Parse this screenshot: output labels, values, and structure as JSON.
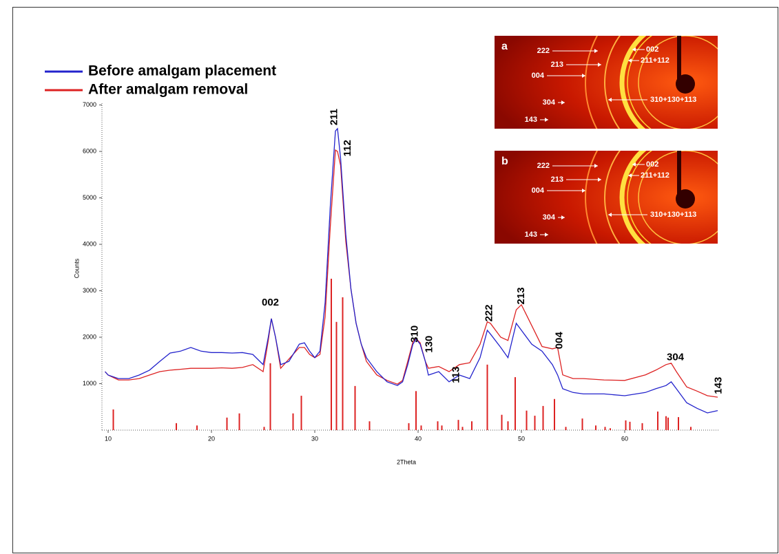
{
  "chart_data": {
    "type": "line",
    "x_label": "2Theta",
    "y_label": "Counts",
    "xlim": [
      9.4,
      69.2
    ],
    "ylim": [
      0,
      7000
    ],
    "xticks": [
      10,
      20,
      30,
      40,
      50,
      60
    ],
    "yticks": [
      1000,
      2000,
      3000,
      4000,
      5000,
      6000,
      7000
    ],
    "x": [
      9.7,
      10,
      11,
      12,
      13,
      14,
      15,
      16,
      17,
      18,
      19,
      20,
      21,
      22,
      23,
      24,
      25,
      25.5,
      25.8,
      26.2,
      26.7,
      27.5,
      28.5,
      29,
      29.5,
      30,
      30.5,
      31,
      31.5,
      32,
      32.2,
      32.5,
      33,
      33.5,
      34,
      34.5,
      35,
      36,
      37,
      38,
      38.5,
      39,
      39.5,
      39.8,
      40.2,
      40.7,
      41,
      42,
      43,
      44,
      45,
      46,
      46.7,
      47,
      48,
      48.7,
      49.5,
      50,
      51,
      52,
      53,
      53.5,
      54,
      55,
      56,
      58,
      60,
      62,
      63,
      64,
      64.5,
      65,
      66,
      67,
      68,
      69
    ],
    "series": [
      {
        "name": "Before amalgam placement",
        "color": "#2222cc",
        "values": [
          1260,
          1185,
          1110,
          1110,
          1185,
          1290,
          1480,
          1660,
          1700,
          1780,
          1700,
          1670,
          1670,
          1660,
          1670,
          1630,
          1410,
          2000,
          2400,
          2000,
          1410,
          1480,
          1850,
          1880,
          1700,
          1560,
          1700,
          2740,
          4810,
          6440,
          6490,
          5850,
          4220,
          3040,
          2300,
          1850,
          1560,
          1260,
          1040,
          960,
          1040,
          1410,
          1850,
          1960,
          1850,
          1480,
          1185,
          1260,
          1040,
          1185,
          1110,
          1560,
          2150,
          2070,
          1780,
          1560,
          2300,
          2150,
          1850,
          1700,
          1410,
          1190,
          890,
          810,
          780,
          780,
          740,
          810,
          890,
          960,
          1040,
          890,
          590,
          470,
          370,
          420
        ]
      },
      {
        "name": "After amalgam removal",
        "color": "#dd2222",
        "values": [
          1260,
          1185,
          1080,
          1080,
          1110,
          1185,
          1260,
          1290,
          1310,
          1330,
          1330,
          1330,
          1340,
          1330,
          1350,
          1410,
          1260,
          1930,
          2400,
          2000,
          1330,
          1530,
          1780,
          1780,
          1630,
          1560,
          1630,
          2440,
          4370,
          6030,
          6000,
          5700,
          4070,
          3040,
          2300,
          1850,
          1480,
          1190,
          1070,
          990,
          1070,
          1480,
          1900,
          1970,
          1880,
          1480,
          1330,
          1370,
          1260,
          1410,
          1450,
          1850,
          2330,
          2300,
          2000,
          1930,
          2590,
          2700,
          2250,
          1800,
          1750,
          1780,
          1190,
          1110,
          1110,
          1080,
          1070,
          1190,
          1290,
          1410,
          1440,
          1260,
          930,
          840,
          740,
          710
        ]
      }
    ],
    "reference": {
      "color": "#dd2222",
      "x": [
        10.5,
        16.6,
        18.6,
        21.5,
        22.7,
        25.1,
        25.7,
        27.9,
        28.7,
        31.6,
        32.1,
        32.7,
        33.9,
        35.3,
        39.1,
        39.8,
        40.3,
        41.9,
        42.3,
        43.9,
        44.3,
        45.2,
        46.7,
        48.1,
        48.7,
        49.4,
        50.5,
        51.3,
        52.1,
        53.2,
        54.3,
        55.9,
        57.2,
        58.1,
        58.6,
        60.1,
        60.5,
        61.7,
        63.2,
        64.0,
        64.2,
        65.2,
        66.4
      ],
      "values": [
        445,
        150,
        100,
        270,
        360,
        70,
        1440,
        360,
        740,
        3260,
        2330,
        2860,
        950,
        190,
        150,
        840,
        100,
        190,
        100,
        220,
        70,
        190,
        1410,
        330,
        190,
        1140,
        420,
        310,
        520,
        670,
        70,
        250,
        100,
        70,
        40,
        210,
        180,
        150,
        400,
        300,
        270,
        280,
        70
      ]
    },
    "annotations": [
      {
        "text": "002",
        "x": 25.7,
        "y": 2740,
        "rotate": false
      },
      {
        "text": "211",
        "x": 31.9,
        "y": 6740,
        "rotate": true
      },
      {
        "text": "112",
        "x": 33.2,
        "y": 6070,
        "rotate": true
      },
      {
        "text": "310",
        "x": 39.7,
        "y": 2070,
        "rotate": true
      },
      {
        "text": "130",
        "x": 41.1,
        "y": 1850,
        "rotate": true
      },
      {
        "text": "113",
        "x": 43.7,
        "y": 1190,
        "rotate": true
      },
      {
        "text": "222",
        "x": 46.9,
        "y": 2520,
        "rotate": true
      },
      {
        "text": "213",
        "x": 50.0,
        "y": 2890,
        "rotate": true
      },
      {
        "text": "004",
        "x": 53.7,
        "y": 1930,
        "rotate": true
      },
      {
        "text": "304",
        "x": 64.9,
        "y": 1560,
        "rotate": false
      },
      {
        "text": "143",
        "x": 69.1,
        "y": 960,
        "rotate": true
      }
    ],
    "insets": [
      {
        "label": "a",
        "rings": [
          "222",
          "002",
          "213",
          "211+112",
          "004",
          "304",
          "310+130+113",
          "143"
        ]
      },
      {
        "label": "b",
        "rings": [
          "222",
          "002",
          "213",
          "211+112",
          "004",
          "304",
          "310+130+113",
          "143"
        ]
      }
    ]
  }
}
